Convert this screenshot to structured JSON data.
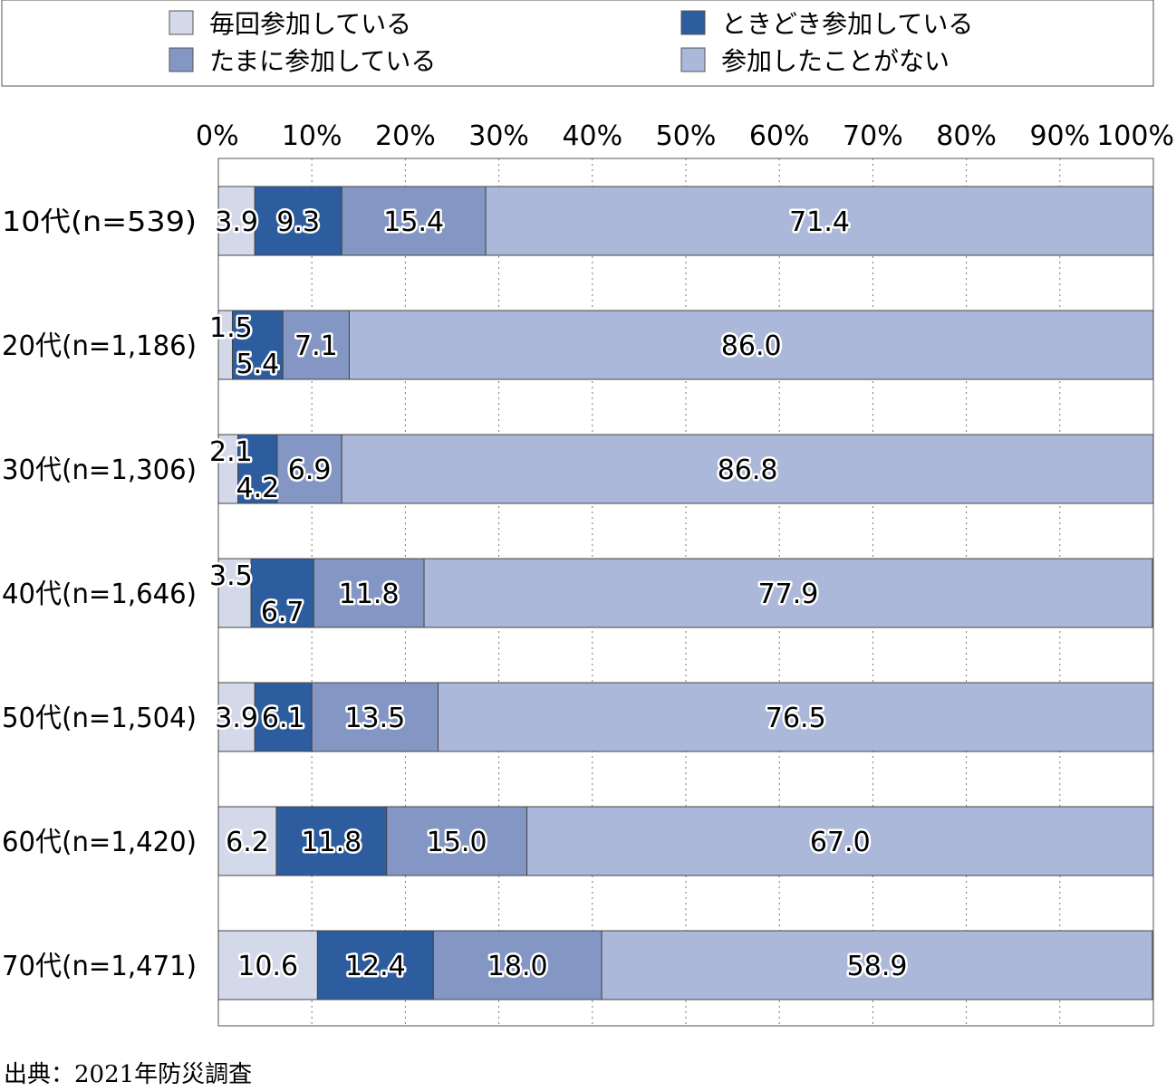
{
  "chart_data": {
    "type": "bar",
    "orientation": "horizontal",
    "stacked": true,
    "categories": [
      "10代(n=539)",
      "20代(n=1,186)",
      "30代(n=1,306)",
      "40代(n=1,646)",
      "50代(n=1,504)",
      "60代(n=1,420)",
      "70代(n=1,471)"
    ],
    "series": [
      {
        "name": "毎回参加している",
        "color": "#d4d9ea",
        "values": [
          3.9,
          1.5,
          2.1,
          3.5,
          3.9,
          6.2,
          10.6
        ],
        "labels": [
          "3.9",
          "1.5",
          "2.1",
          "3.5",
          "3.9",
          "6.2",
          "10.6"
        ]
      },
      {
        "name": "ときどき参加している",
        "color": "#2e5d9f",
        "values": [
          9.3,
          5.4,
          4.2,
          6.7,
          6.1,
          11.8,
          12.4
        ],
        "labels": [
          "9.3",
          "5.4",
          "4.2",
          "6.7",
          "6.1",
          "11.8",
          "12.4"
        ]
      },
      {
        "name": "たまに参加している",
        "color": "#8497c4",
        "values": [
          15.4,
          7.1,
          6.9,
          11.8,
          13.5,
          15.0,
          18.0
        ],
        "labels": [
          "15.4",
          "7.1",
          "6.9",
          "11.8",
          "13.5",
          "15.0",
          "18.0"
        ]
      },
      {
        "name": "参加したことがない",
        "color": "#abb8d9",
        "values": [
          71.4,
          86.0,
          86.8,
          77.9,
          76.5,
          67.0,
          58.9
        ],
        "labels": [
          "71.4",
          "86.0",
          "86.8",
          "77.9",
          "76.5",
          "67.0",
          "58.9"
        ]
      }
    ],
    "xlim": [
      0,
      100
    ],
    "ticks": [
      "0%",
      "10%",
      "20%",
      "30%",
      "40%",
      "50%",
      "60%",
      "70%",
      "80%",
      "90%",
      "100%"
    ],
    "grid": "vertical dotted",
    "legend_position": "top"
  },
  "source": "出典：2021年防災調査"
}
